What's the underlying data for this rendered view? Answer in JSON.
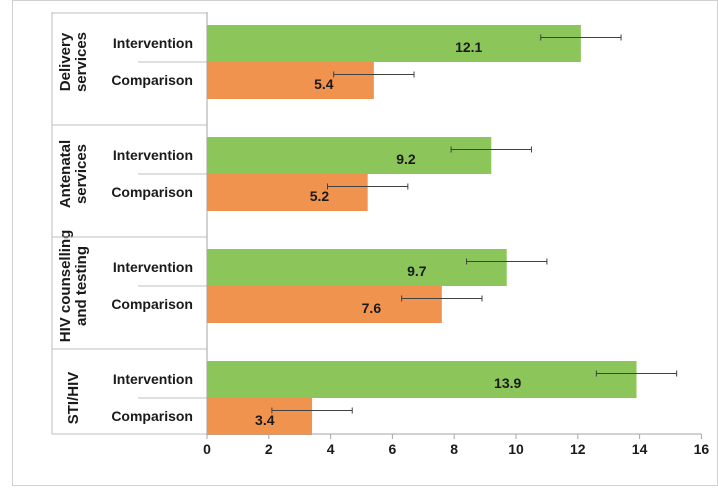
{
  "chart_data": {
    "type": "bar",
    "orientation": "horizontal",
    "groups": [
      {
        "label_lines": [
          "Delivery",
          "services"
        ],
        "bars": [
          {
            "category": "Intervention",
            "value": 12.1,
            "error_low": 10.8,
            "error_high": 13.4
          },
          {
            "category": "Comparison",
            "value": 5.4,
            "error_low": 4.1,
            "error_high": 6.7
          }
        ]
      },
      {
        "label_lines": [
          "Antenatal",
          "services"
        ],
        "bars": [
          {
            "category": "Intervention",
            "value": 9.2,
            "error_low": 7.9,
            "error_high": 10.5
          },
          {
            "category": "Comparison",
            "value": 5.2,
            "error_low": 3.9,
            "error_high": 6.5
          }
        ]
      },
      {
        "label_lines": [
          "HIV counselling",
          "and testing"
        ],
        "bars": [
          {
            "category": "Intervention",
            "value": 9.7,
            "error_low": 8.4,
            "error_high": 11.0
          },
          {
            "category": "Comparison",
            "value": 7.6,
            "error_low": 6.3,
            "error_high": 8.9
          }
        ]
      },
      {
        "label_lines": [
          "STI/HIV"
        ],
        "bars": [
          {
            "category": "Intervention",
            "value": 13.9,
            "error_low": 12.6,
            "error_high": 15.2
          },
          {
            "category": "Comparison",
            "value": 3.4,
            "error_low": 2.1,
            "error_high": 4.7
          }
        ]
      }
    ],
    "x_ticks": [
      "0",
      "2",
      "4",
      "6",
      "8",
      "10",
      "12",
      "14",
      "16"
    ],
    "xlim": [
      0,
      16
    ],
    "grid": false,
    "colors": {
      "Intervention": "#8cc65a",
      "Comparison": "#f0934f"
    },
    "data_labels": true,
    "error_bars": true
  }
}
